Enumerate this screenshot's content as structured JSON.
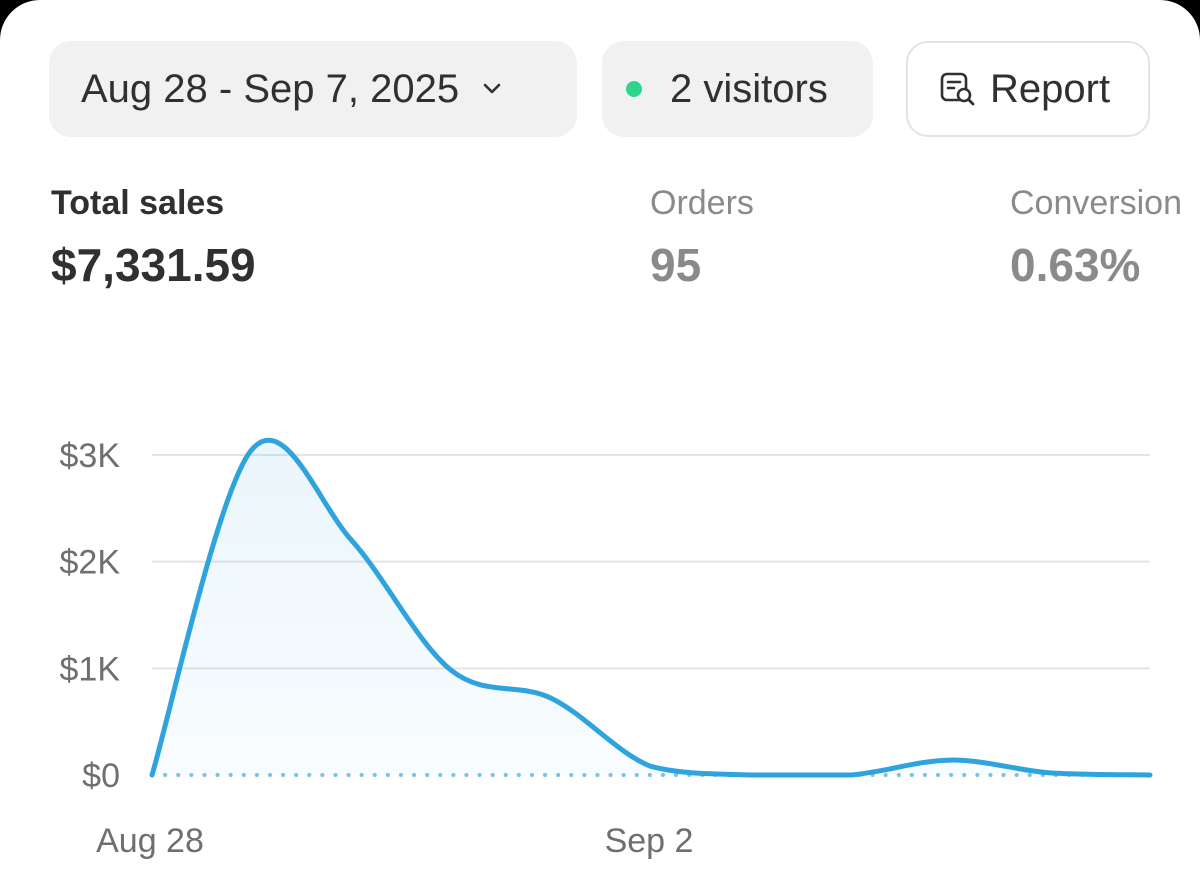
{
  "toolbar": {
    "date_range": "Aug 28 - Sep 7, 2025",
    "visitors": "2 visitors",
    "report_label": "Report"
  },
  "metrics": [
    {
      "label": "Total sales",
      "value": "$7,331.59"
    },
    {
      "label": "Orders",
      "value": "95"
    },
    {
      "label": "Conversion",
      "value": "0.63%"
    }
  ],
  "colors": {
    "line": "#2ea3de",
    "live_dot": "#2fd58d",
    "baseline": "#7cc3dc"
  },
  "chart_data": {
    "type": "area",
    "x": [
      "2025-08-28",
      "2025-08-29",
      "2025-08-30",
      "2025-08-31",
      "2025-09-01",
      "2025-09-02",
      "2025-09-03",
      "2025-09-04",
      "2025-09-05",
      "2025-09-06",
      "2025-09-07"
    ],
    "values": [
      0,
      3050,
      2200,
      980,
      720,
      80,
      0,
      0,
      140,
      20,
      0
    ],
    "y_ticks": [
      "$0",
      "$1K",
      "$2K",
      "$3K"
    ],
    "x_tick_labels": [
      "Aug 28",
      "Sep 2"
    ],
    "ylim": [
      0,
      3000
    ],
    "grid": true,
    "baseline": "dotted"
  }
}
